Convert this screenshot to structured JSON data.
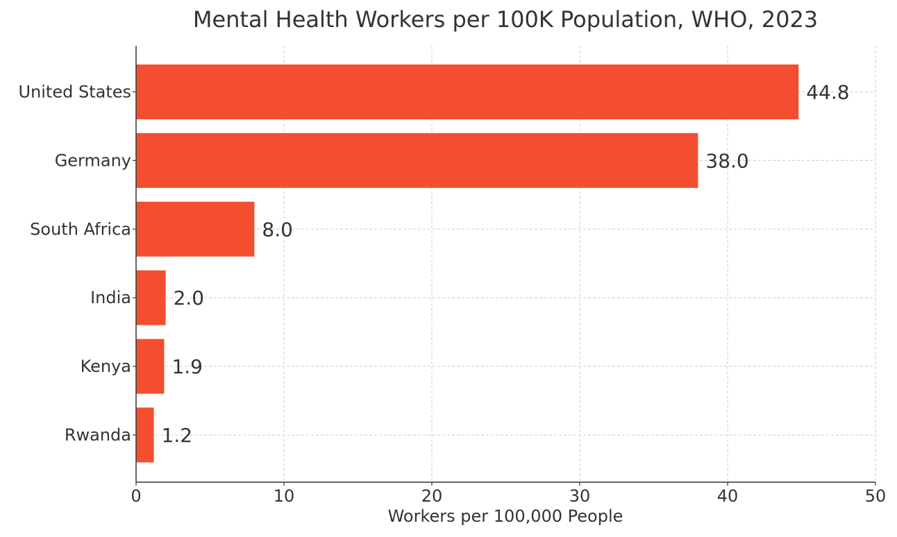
{
  "chart_data": {
    "type": "bar",
    "orientation": "horizontal",
    "title": "Mental Health Workers per 100K Population, WHO, 2023",
    "xlabel": "Workers per 100,000 People",
    "ylabel": "",
    "categories": [
      "United States",
      "Germany",
      "South Africa",
      "India",
      "Kenya",
      "Rwanda"
    ],
    "values": [
      44.8,
      38.0,
      8.0,
      2.0,
      1.9,
      1.2
    ],
    "value_labels": [
      "44.8",
      "38.0",
      "8.0",
      "2.0",
      "1.9",
      "1.2"
    ],
    "xlim": [
      0,
      50
    ],
    "xticks": [
      0,
      10,
      20,
      30,
      40,
      50
    ],
    "xtick_labels": [
      "0",
      "10",
      "20",
      "30",
      "40",
      "50"
    ],
    "grid": true,
    "legend": "none",
    "bar_color": "#f44e31",
    "text_color": "#333333",
    "grid_color": "#cccccc"
  }
}
